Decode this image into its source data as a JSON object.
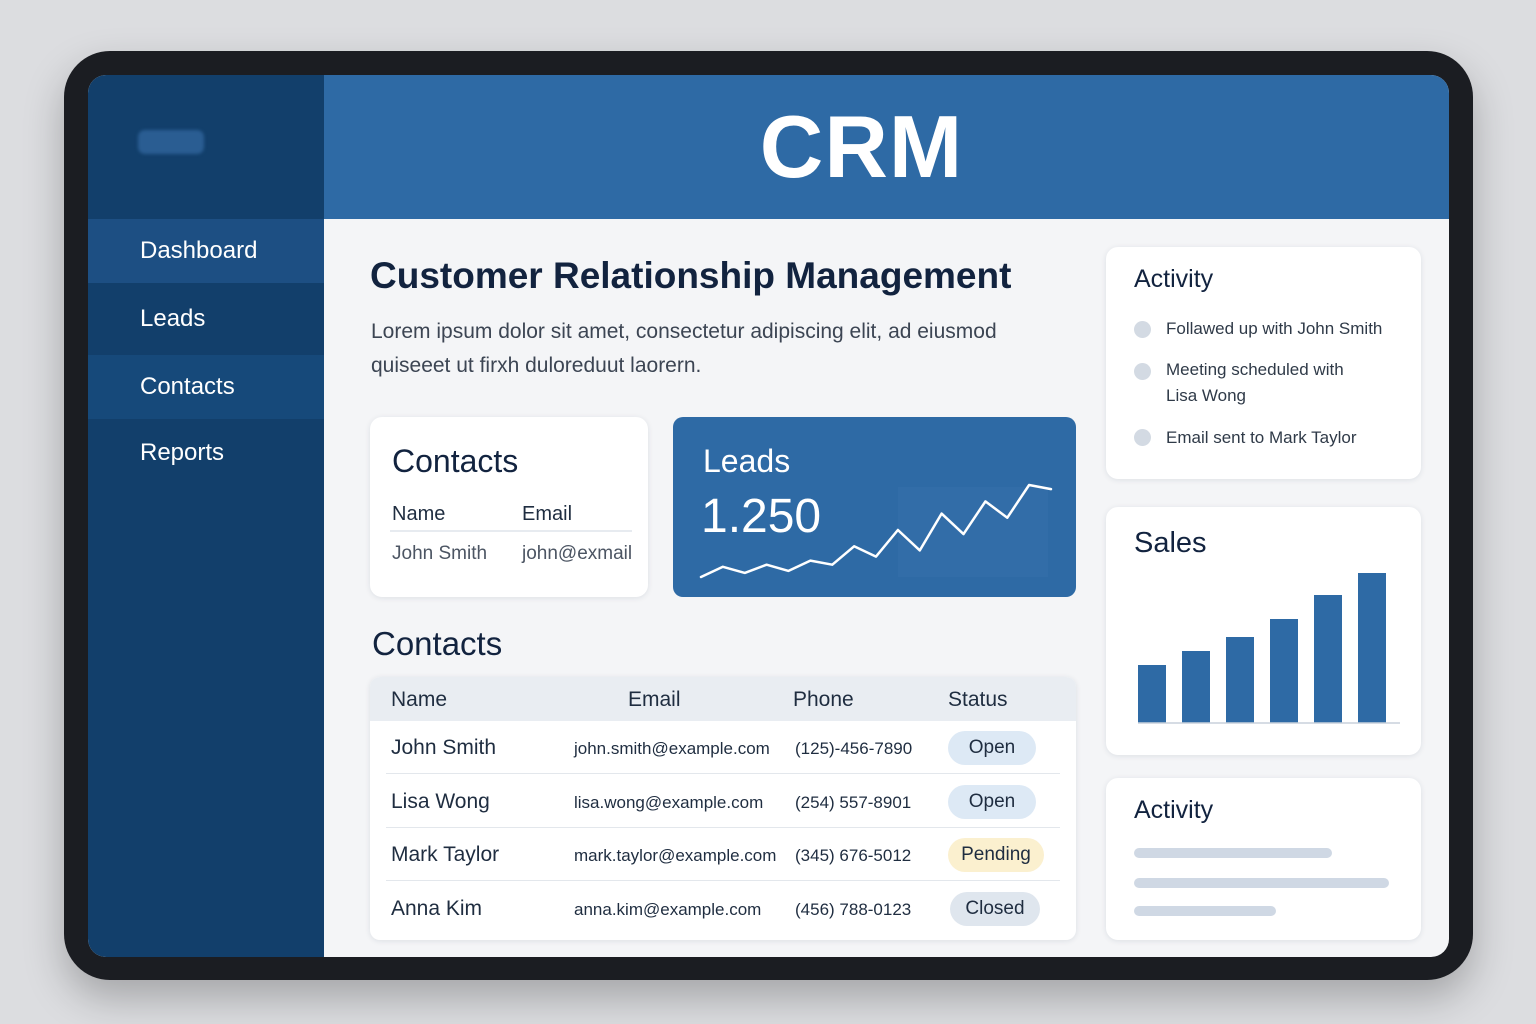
{
  "header": {
    "title": "CRM"
  },
  "sidebar": {
    "items": [
      {
        "label": "Dashboard"
      },
      {
        "label": "Leads"
      },
      {
        "label": "Contacts"
      },
      {
        "label": "Reports"
      }
    ]
  },
  "main": {
    "title": "Customer Relationship Management",
    "intro": "Lorem ipsum dolor sit amet, consectetur adipiscing elit, ad eiusmod quiseeet ut firxh duloreduut laorern.",
    "contacts_card": {
      "title": "Contacts",
      "headers": [
        "Name",
        "Email"
      ],
      "row": [
        "John Smith",
        "john@exmail"
      ]
    },
    "leads_card": {
      "title": "Leads",
      "value": "1.250"
    },
    "contacts_table": {
      "title": "Contacts",
      "headers": [
        "Name",
        "Email",
        "Phone",
        "Status"
      ],
      "rows": [
        {
          "name": "John Smith",
          "email": "john.smith@example.com",
          "phone": "(125)-456-7890",
          "status": "Open"
        },
        {
          "name": "Lisa Wong",
          "email": "lisa.wong@example.com",
          "phone": "(254) 557-8901",
          "status": "Open"
        },
        {
          "name": "Mark Taylor",
          "email": "mark.taylor@example.com",
          "phone": "(345) 676-5012",
          "status": "Pending"
        },
        {
          "name": "Anna Kim",
          "email": "anna.kim@example.com",
          "phone": "(456) 788-0123",
          "status": "Closed"
        }
      ]
    }
  },
  "right": {
    "activity": {
      "title": "Activity",
      "items": [
        "Follawed up with John Smith",
        "Meeting scheduled with Lisa Wong",
        "Email sent to Mark Taylor"
      ]
    },
    "sales": {
      "title": "Sales"
    },
    "activity2": {
      "title": "Activity"
    }
  },
  "chart_data": [
    {
      "type": "bar",
      "title": "Sales",
      "categories": [
        "",
        "",
        "",
        "",
        "",
        ""
      ],
      "values": [
        58,
        72,
        86,
        104,
        128,
        150
      ],
      "ylim": [
        0,
        160
      ],
      "grid": false,
      "color": "#2e6aa5"
    },
    {
      "type": "line",
      "title": "Leads",
      "values": [
        3,
        8,
        5,
        9,
        6,
        11,
        9,
        18,
        13,
        26,
        16,
        34,
        24,
        40,
        32,
        48,
        46
      ],
      "color": "#ffffff"
    }
  ],
  "colors": {
    "sidebar": "#123f6b",
    "header": "#2e6aa5",
    "accent": "#2e6aa5",
    "badge_open": "#dde9f5",
    "badge_pending": "#fbf0cf",
    "badge_closed": "#dfe6ee"
  }
}
